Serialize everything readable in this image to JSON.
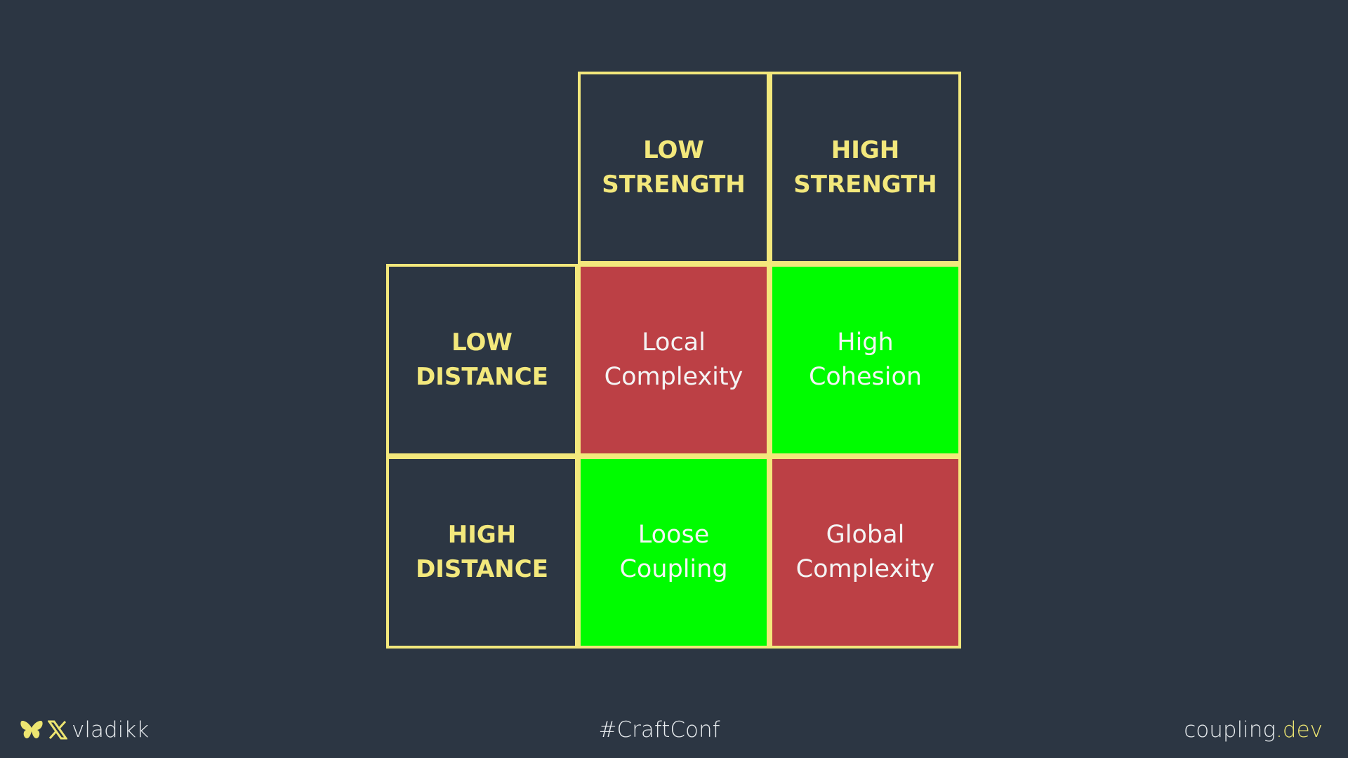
{
  "matrix": {
    "columns": [
      "LOW",
      "STRENGTH",
      "HIGH",
      "STRENGTH"
    ],
    "col_headers": [
      {
        "line1": "LOW",
        "line2": "STRENGTH"
      },
      {
        "line1": "HIGH",
        "line2": "STRENGTH"
      }
    ],
    "row_headers": [
      {
        "line1": "LOW",
        "line2": "DISTANCE"
      },
      {
        "line1": "HIGH",
        "line2": "DISTANCE"
      }
    ],
    "cells": [
      [
        {
          "line1": "Local",
          "line2": "Complexity",
          "color": "#bc4045"
        },
        {
          "line1": "High",
          "line2": "Cohesion",
          "color": "#00fc00"
        }
      ],
      [
        {
          "line1": "Loose",
          "line2": "Coupling",
          "color": "#00fc00"
        },
        {
          "line1": "Global",
          "line2": "Complexity",
          "color": "#bc4045"
        }
      ]
    ],
    "border_color": "#f3e87c"
  },
  "footer": {
    "handle": "vladikk",
    "icons": [
      "butterfly-icon",
      "x-logo-icon"
    ],
    "hashtag": "#CraftConf",
    "site_main": "coupling",
    "site_tld": ".dev"
  }
}
